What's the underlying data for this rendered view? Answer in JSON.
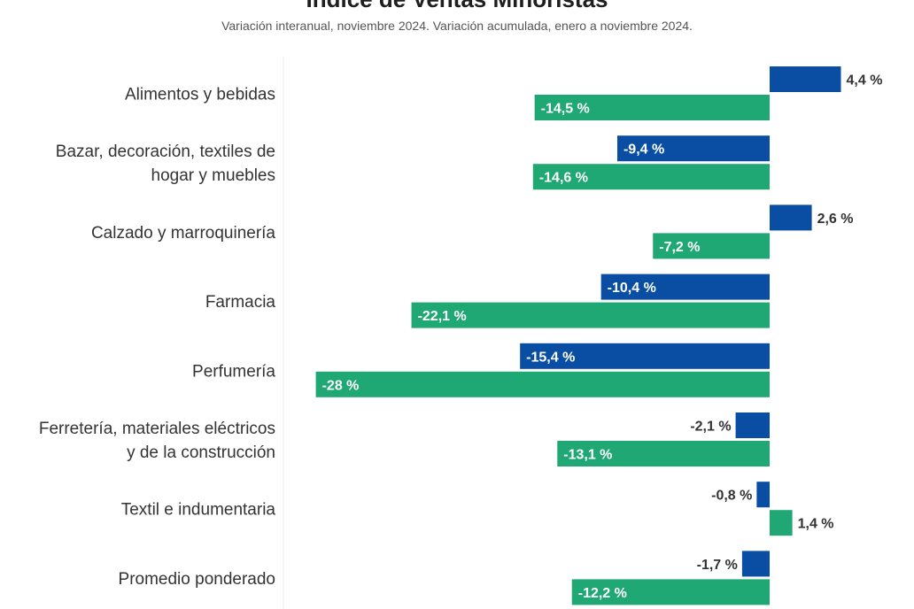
{
  "chart_data": {
    "type": "bar",
    "orientation": "horizontal",
    "title": "Índice de Ventas Minoristas",
    "subtitle": "Variación interanual, noviembre 2024. Variación acumulada, enero a noviembre 2024.",
    "categories": [
      [
        "Alimentos y bebidas"
      ],
      [
        "Bazar, decoración, textiles de",
        "hogar y muebles"
      ],
      [
        "Calzado y marroquinería"
      ],
      [
        "Farmacia"
      ],
      [
        "Perfumería"
      ],
      [
        "Ferretería, materiales eléctricos",
        "y de la construcción"
      ],
      [
        "Textil e indumentaria"
      ],
      [
        "Promedio ponderado"
      ]
    ],
    "series": [
      {
        "color": "#0a4ea3",
        "values": [
          4.4,
          -9.4,
          2.6,
          -10.4,
          -15.4,
          -2.1,
          -0.8,
          -1.7
        ],
        "labels": [
          "4,4 %",
          "-9,4 %",
          "2,6 %",
          "-10,4 %",
          "-15,4 %",
          "-2,1 %",
          "-0,8 %",
          "-1,7 %"
        ]
      },
      {
        "color": "#1fa774",
        "values": [
          -14.5,
          -14.6,
          -7.2,
          -22.1,
          -28,
          -13.1,
          1.4,
          -12.2
        ],
        "labels": [
          "-14,5 %",
          "-14,6 %",
          "-7,2 %",
          "-22,1 %",
          "-28 %",
          "-13,1 %",
          "1,4 %",
          "-12,2 %"
        ]
      }
    ],
    "value_unit": "%",
    "grid": false,
    "legend": "none"
  }
}
